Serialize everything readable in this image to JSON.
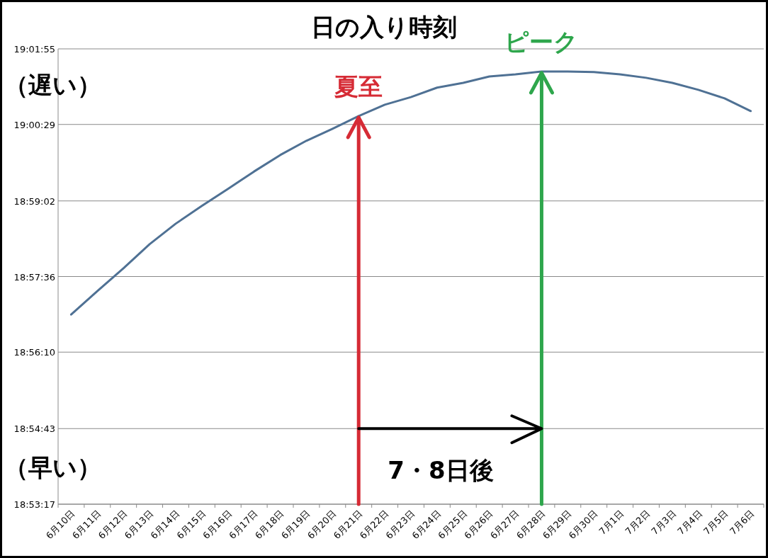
{
  "chart_data": {
    "type": "line",
    "title": "日の入り時刻",
    "categories": [
      "6月10日",
      "6月11日",
      "6月12日",
      "6月13日",
      "6月14日",
      "6月15日",
      "6月16日",
      "6月17日",
      "6月18日",
      "6月19日",
      "6月20日",
      "6月21日",
      "6月22日",
      "6月23日",
      "6月24日",
      "6月25日",
      "6月26日",
      "6月27日",
      "6月28日",
      "6月29日",
      "6月30日",
      "7月1日",
      "7月2日",
      "7月3日",
      "7月4日",
      "7月5日",
      "7月6日"
    ],
    "series": [
      {
        "color": "#4f7194",
        "values": [
          18.948,
          18.9554,
          18.9626,
          18.9702,
          18.9767,
          18.9823,
          18.9877,
          18.9932,
          18.9984,
          19.0029,
          19.0067,
          19.0107,
          19.0143,
          19.0167,
          19.0197,
          19.0212,
          19.0232,
          19.0239,
          19.0248,
          19.0248,
          19.0246,
          19.0239,
          19.0228,
          19.0212,
          19.019,
          19.0163,
          19.0123
        ]
      }
    ],
    "ylim": [
      18.888056,
      19.031944
    ],
    "yticks": [
      {
        "value": 18.888056,
        "label": "18:53:17"
      },
      {
        "value": 18.911944,
        "label": "18:54:43"
      },
      {
        "value": 18.936111,
        "label": "18:56:10"
      },
      {
        "value": 18.96,
        "label": "18:57:36"
      },
      {
        "value": 18.983889,
        "label": "18:59:02"
      },
      {
        "value": 19.008056,
        "label": "19:00:29"
      },
      {
        "value": 19.031944,
        "label": "19:01:55"
      }
    ],
    "grid": "y",
    "marker": "none",
    "line_style": "solid",
    "annotations": [
      "（遅い）",
      "（早い）",
      "7・8日後"
    ],
    "ref_lines": [
      {
        "axis": "x",
        "value": "6月21日",
        "label": "夏至",
        "color": "#d62b35"
      },
      {
        "axis": "x",
        "value": "6月28日",
        "label": "ピーク",
        "color": "#2ea64c"
      }
    ]
  }
}
